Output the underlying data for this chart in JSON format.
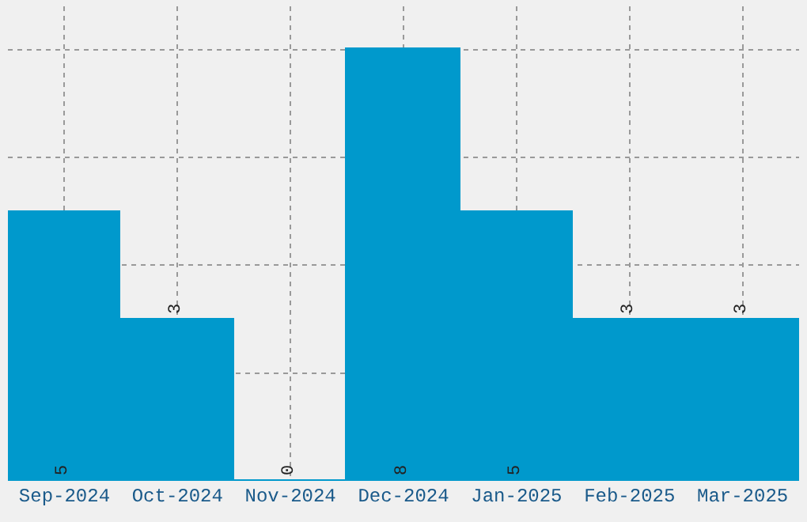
{
  "chart_data": {
    "type": "bar",
    "categories": [
      "Sep-2024",
      "Oct-2024",
      "Nov-2024",
      "Dec-2024",
      "Jan-2025",
      "Feb-2025",
      "Mar-2025"
    ],
    "values": [
      5,
      3,
      0,
      8,
      5,
      3,
      3
    ],
    "color": "#0099cc",
    "data_labels": true,
    "ylim": [
      0,
      8.8
    ],
    "tick_labels": "x",
    "grid": true,
    "legend": false
  }
}
